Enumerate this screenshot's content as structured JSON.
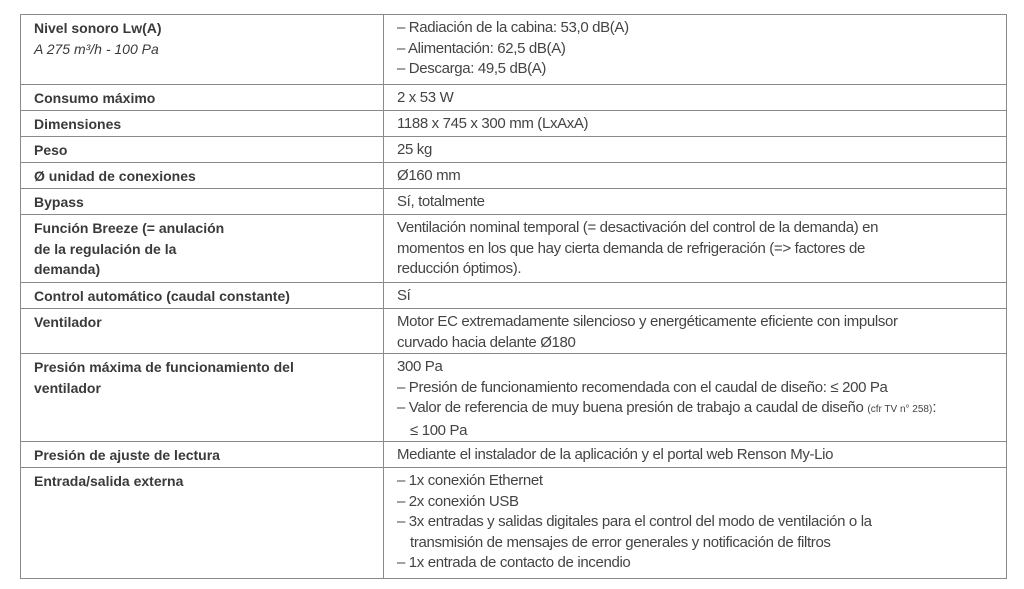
{
  "rows": [
    {
      "label": "Nivel sonoro Lw(A)",
      "sublabel": "A 275 m³/h - 100 Pa",
      "lines": [
        "– Radiación de la cabina: 53,0 dB(A)",
        "– Alimentación: 62,5 dB(A)",
        "– Descarga: 49,5 dB(A)"
      ]
    },
    {
      "label": "Consumo máximo",
      "value": "2 x 53 W"
    },
    {
      "label": "Dimensiones",
      "value": "1188 x 745 x 300 mm (LxAxA)"
    },
    {
      "label": "Peso",
      "value": "25 kg"
    },
    {
      "label": "Ø unidad de conexiones",
      "value": "Ø160 mm"
    },
    {
      "label": "Bypass",
      "value": "Sí, totalmente"
    },
    {
      "label_lines": [
        "Función Breeze (= anulación",
        "de la regulación de la",
        "demanda)"
      ],
      "lines": [
        "Ventilación nominal temporal (= desactivación del control de la demanda) en",
        "momentos en los que hay cierta demanda de refrigeración (=> factores de",
        "reducción óptimos)."
      ]
    },
    {
      "label": "Control automático (caudal constante)",
      "value": "Sí"
    },
    {
      "label": "Ventilador",
      "lines": [
        "Motor EC extremadamente silencioso y energéticamente eficiente con impulsor",
        "curvado hacia delante Ø180"
      ]
    },
    {
      "label_lines": [
        "Presión máxima de funcionamiento del",
        "ventilador"
      ],
      "lines": [
        "300 Pa",
        "– Presión de funcionamiento recomendada con el caudal de diseño: ≤ 200 Pa",
        "– Valor de referencia de muy buena presión de trabajo a caudal de diseño"
      ],
      "note": "(cfr TV n° 258)",
      "note_suffix": ":",
      "last_line": "≤ 100 Pa"
    },
    {
      "label": "Presión de ajuste de lectura",
      "value": "Mediante el instalador de la aplicación y el portal web Renson My-Lio"
    },
    {
      "label": "Entrada/salida externa",
      "lines": [
        "– 1x conexión Ethernet",
        "– 2x conexión USB",
        "– 3x entradas y salidas digitales para el control del modo de ventilación o la"
      ],
      "cont": "transmisión de mensajes de error generales y notificación de filtros",
      "last_line": "– 1x entrada de contacto de incendio"
    }
  ]
}
